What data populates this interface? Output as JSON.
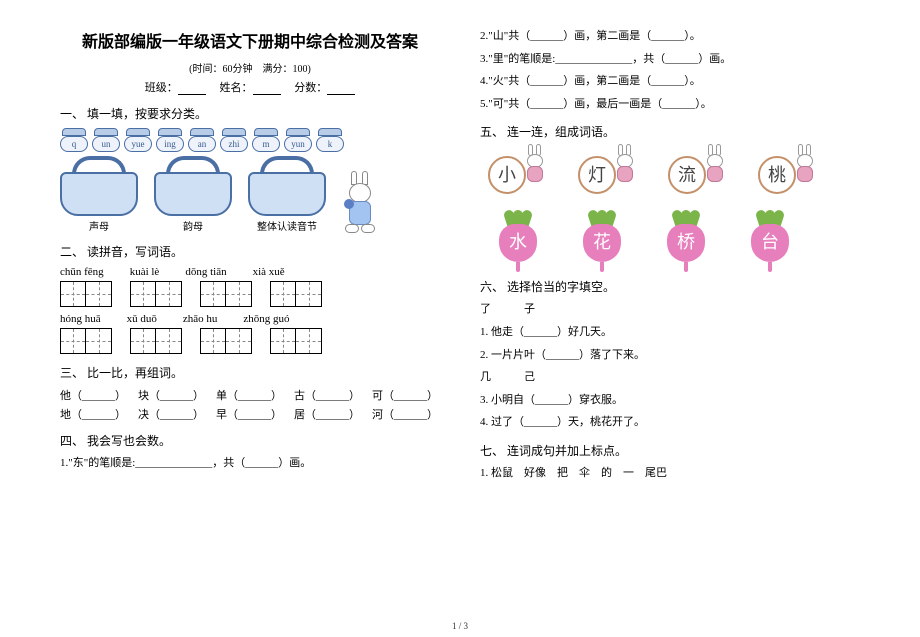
{
  "title": "新版部编版一年级语文下册期中综合检测及答案",
  "subtitle": "(时间：60分钟　满分：100)",
  "info": {
    "class": "班级：",
    "name": "姓名：",
    "score": "分数："
  },
  "ex1": {
    "heading": "一、 填一填，按要求分类。",
    "cards": [
      "q",
      "un",
      "yue",
      "ing",
      "an",
      "zhi",
      "m",
      "yun",
      "k"
    ],
    "baskets": [
      "声母",
      "韵母",
      "整体认读音节"
    ]
  },
  "ex2": {
    "heading": "二、 读拼音，写词语。",
    "row1": [
      "chūn fēng",
      "kuài lè",
      "dōng tiān",
      "xià xuě"
    ],
    "row2": [
      "hóng huā",
      "xǔ duō",
      "zhāo hu",
      "zhōng guó"
    ]
  },
  "ex3": {
    "heading": "三、 比一比，再组词。",
    "row1": [
      "他（______）",
      "块（______）",
      "单（______）",
      "古（______）",
      "可（______）"
    ],
    "row2": [
      "地（______）",
      "决（______）",
      "早（______）",
      "居（______）",
      "河（______）"
    ]
  },
  "ex4": {
    "heading": "四、 我会写也会数。",
    "q1": "1.\"东\"的笔顺是:______________，共（______）画。",
    "q2": "2.\"山\"共（______）画，第二画是（______）。",
    "q3": "3.\"里\"的笔顺是:______________，共（______）画。",
    "q4": "4.\"火\"共（______）画，第二画是（______）。",
    "q5": "5.\"可\"共（______）画，最后一画是（______）。"
  },
  "ex5": {
    "heading": "五、 连一连，组成词语。",
    "top": [
      "小",
      "灯",
      "流",
      "桃"
    ],
    "bottom": [
      "水",
      "花",
      "桥",
      "台"
    ]
  },
  "ex6": {
    "heading": "六、 选择恰当的字填空。",
    "pair1": "了　　　子",
    "q1": "1. 他走（______）好几天。",
    "q2": "2. 一片片叶（______）落了下来。",
    "pair2": "几　　　己",
    "q3": "3. 小明自（______）穿衣服。",
    "q4": "4. 过了（______）天，桃花开了。"
  },
  "ex7": {
    "heading": "七、 连词成句并加上标点。",
    "q1": "1. 松鼠　好像　把　伞　的　一　尾巴"
  },
  "footer": "1 / 3"
}
